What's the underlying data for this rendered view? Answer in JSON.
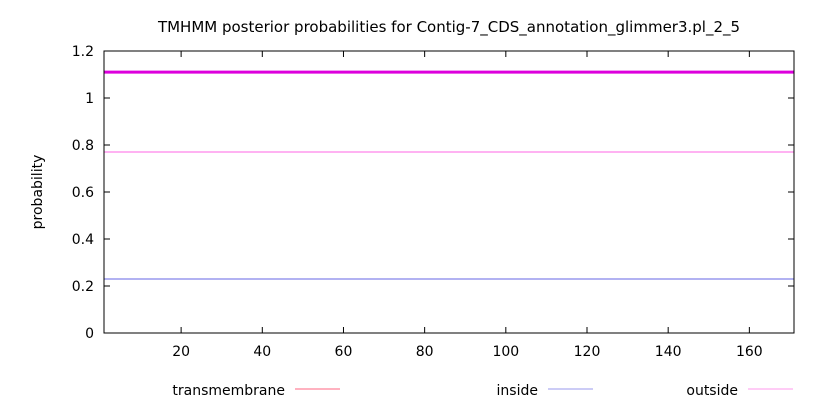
{
  "chart_data": {
    "type": "line",
    "title": "TMHMM posterior probabilities for Contig-7_CDS_annotation_glimmer3.pl_2_5",
    "xlabel": "",
    "ylabel": "probability",
    "xlim": [
      1,
      171
    ],
    "ylim": [
      0,
      1.2
    ],
    "xticks": [
      20,
      40,
      60,
      80,
      100,
      120,
      140,
      160
    ],
    "yticks": [
      0,
      0.2,
      0.4,
      0.6,
      0.8,
      1,
      1.2
    ],
    "ytick_labels": [
      "0",
      "0.2",
      "0.4",
      "0.6",
      "0.8",
      "1",
      "1.2"
    ],
    "grid": false,
    "legend_position": "bottom",
    "series": [
      {
        "name": "transmembrane",
        "color": "#ff6680",
        "style": "line",
        "x": [],
        "y": []
      },
      {
        "name": "inside",
        "color": "#9999ee",
        "style": "line",
        "x": [
          1,
          171
        ],
        "y": [
          0.23,
          0.23
        ]
      },
      {
        "name": "outside",
        "color": "#ff99ee",
        "style": "line",
        "x": [
          1,
          171
        ],
        "y": [
          0.77,
          0.77
        ]
      }
    ],
    "bands": [
      {
        "color": "#dd00dd",
        "y": 1.11,
        "x": [
          1,
          171
        ]
      }
    ]
  }
}
